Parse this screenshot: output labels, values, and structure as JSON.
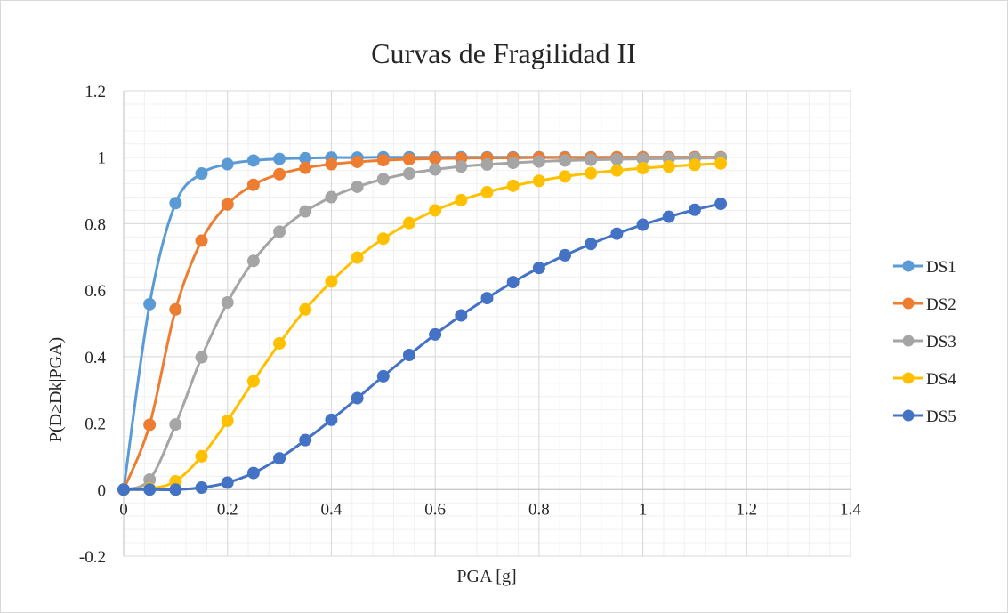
{
  "chart_data": {
    "type": "scatter",
    "title": "Curvas de Fragilidad II",
    "xlabel": "PGA [g]",
    "ylabel": "P(D≥Dk|PGA)",
    "xlim": [
      0,
      1.4
    ],
    "ylim": [
      -0.2,
      1.2
    ],
    "x_ticks": [
      0,
      0.2,
      0.4,
      0.6,
      0.8,
      1,
      1.2,
      1.4
    ],
    "y_ticks": [
      -0.2,
      0,
      0.2,
      0.4,
      0.6,
      0.8,
      1,
      1.2
    ],
    "grid": true,
    "legend_position": "right",
    "smooth_lines": true,
    "x": [
      0,
      0.05,
      0.1,
      0.15,
      0.2,
      0.25,
      0.3,
      0.35,
      0.4,
      0.45,
      0.5,
      0.55,
      0.6,
      0.65,
      0.7,
      0.75,
      0.8,
      0.85,
      0.9,
      0.95,
      1,
      1.05,
      1.1,
      1.15
    ],
    "series": [
      {
        "name": "DS1",
        "color": "#5b9bd5",
        "values": [
          0,
          0.558,
          0.862,
          0.951,
          0.979,
          0.99,
          0.995,
          0.997,
          0.999,
          0.999,
          1,
          1,
          1,
          1,
          1,
          1,
          1,
          1,
          1,
          1,
          1,
          1,
          1,
          1
        ]
      },
      {
        "name": "DS2",
        "color": "#ed7d31",
        "values": [
          0,
          0.195,
          0.542,
          0.749,
          0.858,
          0.917,
          0.949,
          0.968,
          0.979,
          0.986,
          0.991,
          0.994,
          0.996,
          0.997,
          0.998,
          0.998,
          0.999,
          0.999,
          0.999,
          1,
          1,
          1,
          1,
          1
        ]
      },
      {
        "name": "DS3",
        "color": "#a5a5a5",
        "values": [
          0,
          0.03,
          0.196,
          0.398,
          0.563,
          0.688,
          0.776,
          0.837,
          0.88,
          0.911,
          0.934,
          0.951,
          0.963,
          0.972,
          0.978,
          0.983,
          0.987,
          0.99,
          0.992,
          0.994,
          0.995,
          0.996,
          0.997,
          0.998
        ]
      },
      {
        "name": "DS4",
        "color": "#ffc000",
        "values": [
          0,
          0.003,
          0.025,
          0.1,
          0.207,
          0.326,
          0.44,
          0.542,
          0.626,
          0.698,
          0.755,
          0.802,
          0.84,
          0.871,
          0.895,
          0.914,
          0.929,
          0.942,
          0.952,
          0.96,
          0.967,
          0.972,
          0.977,
          0.981
        ]
      },
      {
        "name": "DS5",
        "color": "#4472c4",
        "values": [
          0,
          0,
          0,
          0.006,
          0.021,
          0.05,
          0.094,
          0.149,
          0.21,
          0.275,
          0.341,
          0.405,
          0.467,
          0.524,
          0.576,
          0.624,
          0.667,
          0.705,
          0.739,
          0.77,
          0.797,
          0.821,
          0.842,
          0.86
        ]
      }
    ]
  }
}
